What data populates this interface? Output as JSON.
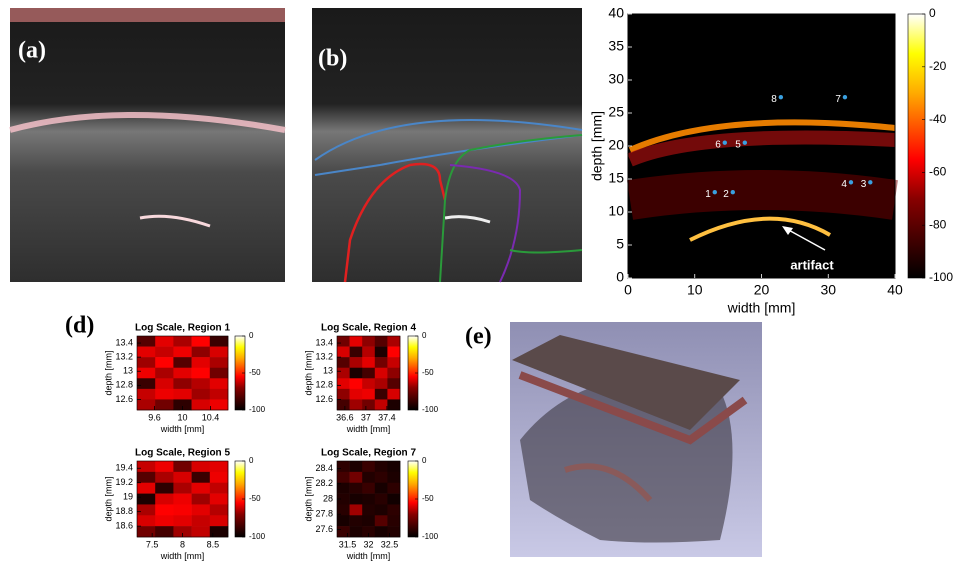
{
  "panels": {
    "a": {
      "label": "(a)"
    },
    "b": {
      "label": "(b)"
    },
    "d": {
      "label": "(d)"
    },
    "e": {
      "label": "(e)"
    }
  },
  "chart_data": [
    {
      "type": "image-plot",
      "xlabel": "width [mm]",
      "ylabel": "depth [mm]",
      "xlim": [
        0,
        40
      ],
      "ylim": [
        0,
        40
      ],
      "xticks": [
        0,
        10,
        20,
        30,
        40
      ],
      "yticks": [
        0,
        5,
        10,
        15,
        20,
        25,
        30,
        35,
        40
      ],
      "colorbar": {
        "lim": [
          -100,
          0
        ],
        "ticks": [
          0,
          -20,
          -40,
          -60,
          -80,
          -100
        ]
      },
      "annotation": "artifact",
      "markers": [
        {
          "label": "1",
          "x": 13.0,
          "y": 13.0
        },
        {
          "label": "2",
          "x": 15.7,
          "y": 13.0
        },
        {
          "label": "3",
          "x": 36.3,
          "y": 14.5
        },
        {
          "label": "4",
          "x": 33.4,
          "y": 14.5
        },
        {
          "label": "5",
          "x": 17.5,
          "y": 20.5
        },
        {
          "label": "6",
          "x": 14.5,
          "y": 20.5
        },
        {
          "label": "7",
          "x": 32.5,
          "y": 27.4
        },
        {
          "label": "8",
          "x": 22.9,
          "y": 27.4
        }
      ]
    },
    {
      "type": "heatmap",
      "title": "Log Scale, Region 1",
      "xlabel": "width [mm]",
      "ylabel": "depth [mm]",
      "xlim": [
        9.35,
        10.65
      ],
      "ylim": [
        12.45,
        13.5
      ],
      "xticks": [
        9.6,
        10,
        10.4
      ],
      "yticks": [
        12.6,
        12.8,
        13,
        13.2,
        13.4
      ],
      "colorbar": {
        "lim": [
          -100,
          0
        ],
        "ticks": [
          0,
          -50,
          -100
        ]
      },
      "z": [
        [
          -85,
          -60,
          -70,
          -55,
          -90
        ],
        [
          -60,
          -65,
          -58,
          -75,
          -62
        ],
        [
          -72,
          -55,
          -85,
          -60,
          -70
        ],
        [
          -58,
          -70,
          -60,
          -55,
          -80
        ],
        [
          -90,
          -62,
          -75,
          -68,
          -60
        ],
        [
          -65,
          -58,
          -60,
          -72,
          -66
        ],
        [
          -70,
          -80,
          -92,
          -62,
          -58
        ]
      ]
    },
    {
      "type": "heatmap",
      "title": "Log Scale, Region 4",
      "xlabel": "width [mm]",
      "ylabel": "depth [mm]",
      "xlim": [
        36.45,
        37.65
      ],
      "ylim": [
        12.45,
        13.5
      ],
      "xticks": [
        36.6,
        37,
        37.4
      ],
      "yticks": [
        12.6,
        12.8,
        13,
        13.2,
        13.4
      ],
      "colorbar": {
        "lim": [
          -100,
          0
        ],
        "ticks": [
          0,
          -50,
          -100
        ]
      },
      "z": [
        [
          -80,
          -60,
          -75,
          -85,
          -70
        ],
        [
          -62,
          -90,
          -68,
          -95,
          -55
        ],
        [
          -85,
          -70,
          -60,
          -80,
          -65
        ],
        [
          -70,
          -95,
          -88,
          -62,
          -75
        ],
        [
          -60,
          -55,
          -65,
          -70,
          -85
        ],
        [
          -75,
          -60,
          -58,
          -90,
          -62
        ],
        [
          -88,
          -72,
          -80,
          -66,
          -95
        ]
      ]
    },
    {
      "type": "heatmap",
      "title": "Log Scale, Region 5",
      "xlabel": "width [mm]",
      "ylabel": "depth [mm]",
      "xlim": [
        7.25,
        8.75
      ],
      "ylim": [
        18.45,
        19.5
      ],
      "xticks": [
        7.5,
        8,
        8.5
      ],
      "yticks": [
        18.6,
        18.8,
        19,
        19.2,
        19.4
      ],
      "colorbar": {
        "lim": [
          -100,
          0
        ],
        "ticks": [
          0,
          -50,
          -100
        ]
      },
      "z": [
        [
          -65,
          -58,
          -80,
          -62,
          -60
        ],
        [
          -85,
          -70,
          -62,
          -90,
          -58
        ],
        [
          -60,
          -92,
          -70,
          -60,
          -66
        ],
        [
          -95,
          -62,
          -58,
          -72,
          -60
        ],
        [
          -70,
          -55,
          -56,
          -60,
          -68
        ],
        [
          -62,
          -58,
          -60,
          -65,
          -62
        ],
        [
          -80,
          -88,
          -72,
          -66,
          -95
        ]
      ]
    },
    {
      "type": "heatmap",
      "title": "Log Scale, Region 7",
      "xlabel": "width [mm]",
      "ylabel": "depth [mm]",
      "xlim": [
        31.25,
        32.75
      ],
      "ylim": [
        27.5,
        28.5
      ],
      "xticks": [
        31.5,
        32,
        32.5
      ],
      "yticks": [
        27.6,
        27.8,
        28,
        28.2,
        28.4
      ],
      "colorbar": {
        "lim": [
          -100,
          0
        ],
        "ticks": [
          0,
          -50,
          -100
        ]
      },
      "z": [
        [
          -92,
          -95,
          -90,
          -94,
          -96
        ],
        [
          -88,
          -80,
          -94,
          -92,
          -95
        ],
        [
          -95,
          -93,
          -90,
          -96,
          -92
        ],
        [
          -94,
          -96,
          -95,
          -93,
          -97
        ],
        [
          -93,
          -72,
          -94,
          -95,
          -92
        ],
        [
          -96,
          -94,
          -95,
          -85,
          -93
        ],
        [
          -90,
          -95,
          -93,
          -96,
          -94
        ]
      ]
    }
  ]
}
